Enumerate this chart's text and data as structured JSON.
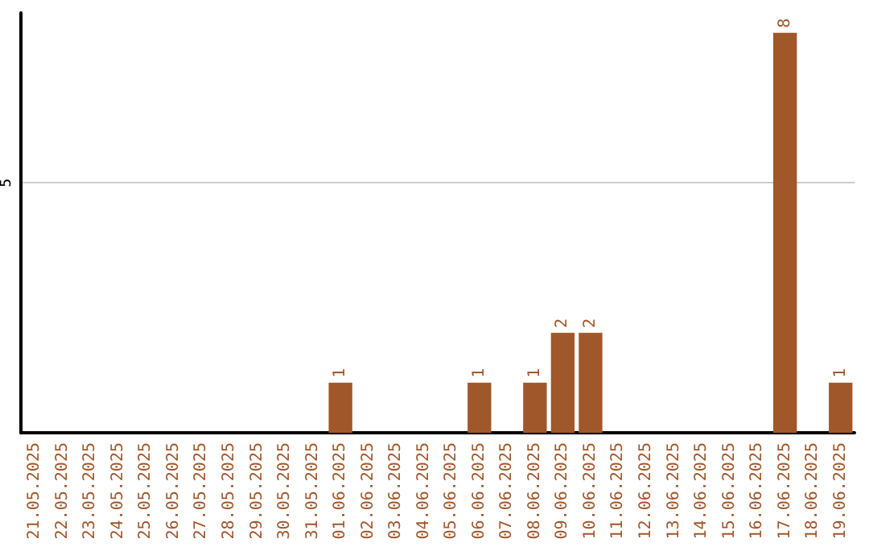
{
  "chart_data": {
    "type": "bar",
    "categories": [
      "21.05.2025",
      "22.05.2025",
      "23.05.2025",
      "24.05.2025",
      "25.05.2025",
      "26.05.2025",
      "27.05.2025",
      "28.05.2025",
      "29.05.2025",
      "30.05.2025",
      "31.05.2025",
      "01.06.2025",
      "02.06.2025",
      "03.06.2025",
      "04.06.2025",
      "05.06.2025",
      "06.06.2025",
      "07.06.2025",
      "08.06.2025",
      "09.06.2025",
      "10.06.2025",
      "11.06.2025",
      "12.06.2025",
      "13.06.2025",
      "14.06.2025",
      "15.06.2025",
      "16.06.2025",
      "17.06.2025",
      "18.06.2025",
      "19.06.2025"
    ],
    "values": [
      0,
      0,
      0,
      0,
      0,
      0,
      0,
      0,
      0,
      0,
      0,
      1,
      0,
      0,
      0,
      0,
      1,
      0,
      1,
      2,
      2,
      0,
      0,
      0,
      0,
      0,
      0,
      8,
      0,
      1
    ],
    "value_labels": [
      null,
      null,
      null,
      null,
      null,
      null,
      null,
      null,
      null,
      null,
      null,
      "1",
      null,
      null,
      null,
      null,
      "1",
      null,
      "1",
      "2",
      "2",
      null,
      null,
      null,
      null,
      null,
      null,
      "8",
      null,
      "1"
    ],
    "color": "#a0572a",
    "ylim": [
      0,
      8.4
    ],
    "yticks": [
      5
    ],
    "grid": "y"
  }
}
